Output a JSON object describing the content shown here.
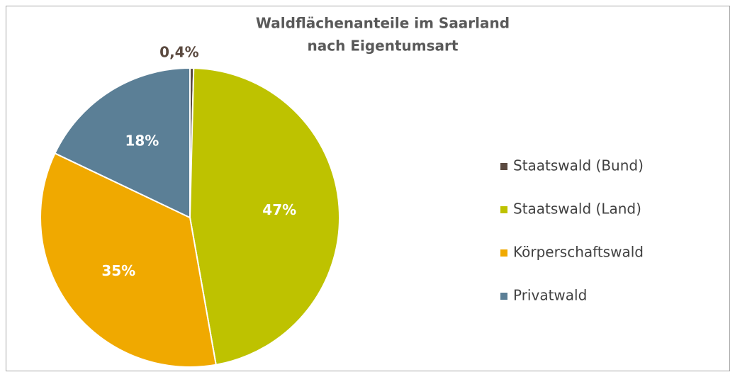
{
  "chart_data": {
    "type": "pie",
    "title": [
      "Waldflächenanteile im Saarland",
      "nach Eigentumsart"
    ],
    "categories": [
      "Staatswald (Bund)",
      "Staatswald (Land)",
      "Körperschaftswald",
      "Privatwald"
    ],
    "values": [
      0.4,
      47,
      35,
      18
    ],
    "value_labels": [
      "0,4%",
      "47%",
      "35%",
      "18%"
    ],
    "colors": [
      "#5b4a40",
      "#bec200",
      "#f0a900",
      "#5b7f96"
    ],
    "legend": "right"
  }
}
